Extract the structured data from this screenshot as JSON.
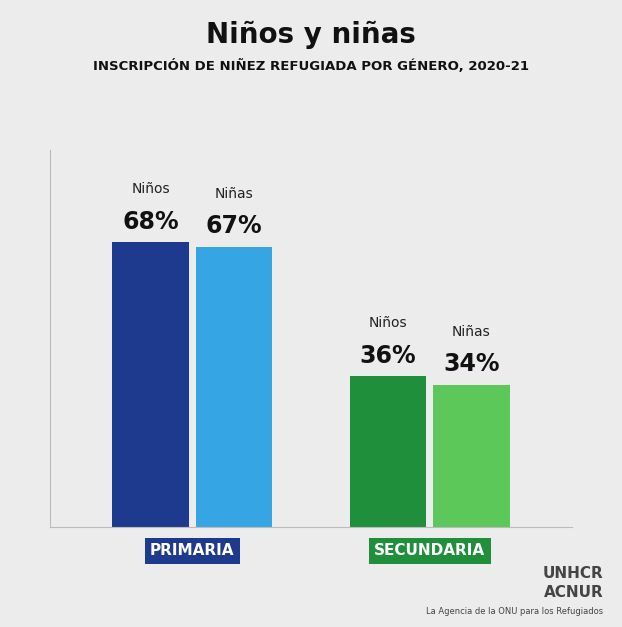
{
  "chart_data": {
    "type": "bar",
    "title": "Niños y niñas",
    "subtitle": "INSCRIPCIÓN DE NIÑEZ REFUGIADA POR GÉNERO, 2020-21",
    "categories": [
      "PRIMARIA",
      "SECUNDARIA"
    ],
    "series": [
      {
        "name": "Niños",
        "colors": [
          "#1d3a8f",
          "#1f8f3c"
        ],
        "values": [
          68,
          36
        ],
        "value_labels": [
          "68%",
          "36%"
        ]
      },
      {
        "name": "Niñas",
        "colors": [
          "#35a6e3",
          "#5cc85a"
        ],
        "values": [
          67,
          34
        ],
        "value_labels": [
          "67%",
          "34%"
        ]
      }
    ],
    "ylim": [
      0,
      90
    ],
    "yticks": [],
    "data_labels": true,
    "tick_labels": "x",
    "grid": false,
    "annotations": [
      "UNHCR",
      "ACNUR",
      "La Agencia de la ONU para los Refugiados"
    ]
  }
}
